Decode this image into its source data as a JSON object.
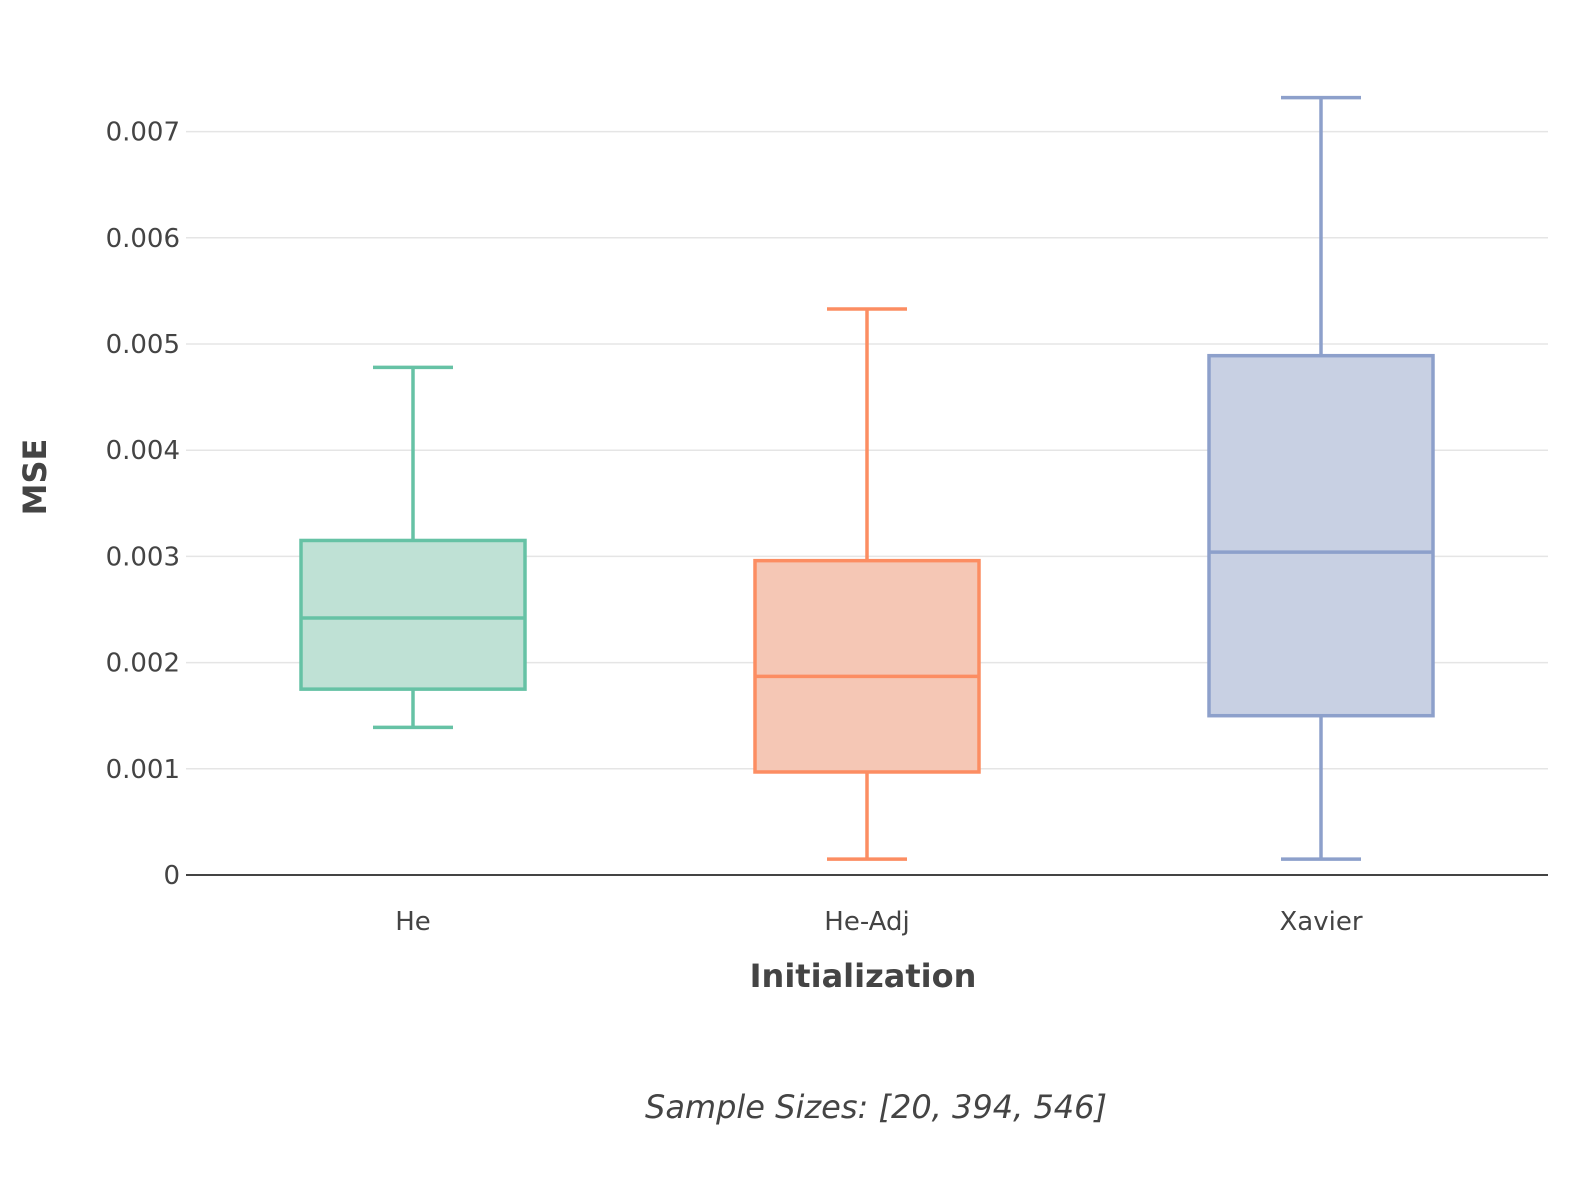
{
  "chart_data": {
    "type": "box",
    "xlabel": "Initialization",
    "ylabel": "MSE",
    "ylim": [
      0,
      0.0075
    ],
    "yticks": [
      0,
      0.001,
      0.002,
      0.003,
      0.004,
      0.005,
      0.006,
      0.007
    ],
    "ytick_labels": [
      "0",
      "0.001",
      "0.002",
      "0.003",
      "0.004",
      "0.005",
      "0.006",
      "0.007"
    ],
    "grid": true,
    "categories": [
      "He",
      "He-Adj",
      "Xavier"
    ],
    "series": [
      {
        "category": "He",
        "color": "#66c2a5",
        "fill": "#bfe1d5",
        "min": 0.00139,
        "q1": 0.00175,
        "median": 0.00242,
        "q3": 0.00315,
        "max": 0.00478
      },
      {
        "category": "He-Adj",
        "color": "#fc8d62",
        "fill": "#f5c7b5",
        "min": 0.00015,
        "q1": 0.00097,
        "median": 0.00187,
        "q3": 0.00296,
        "max": 0.00533
      },
      {
        "category": "Xavier",
        "color": "#8da0cb",
        "fill": "#c8d0e3",
        "min": 0.00015,
        "q1": 0.0015,
        "median": 0.00304,
        "q3": 0.00489,
        "max": 0.00732
      }
    ],
    "annotation": "Sample Sizes: [20, 394, 546]"
  }
}
